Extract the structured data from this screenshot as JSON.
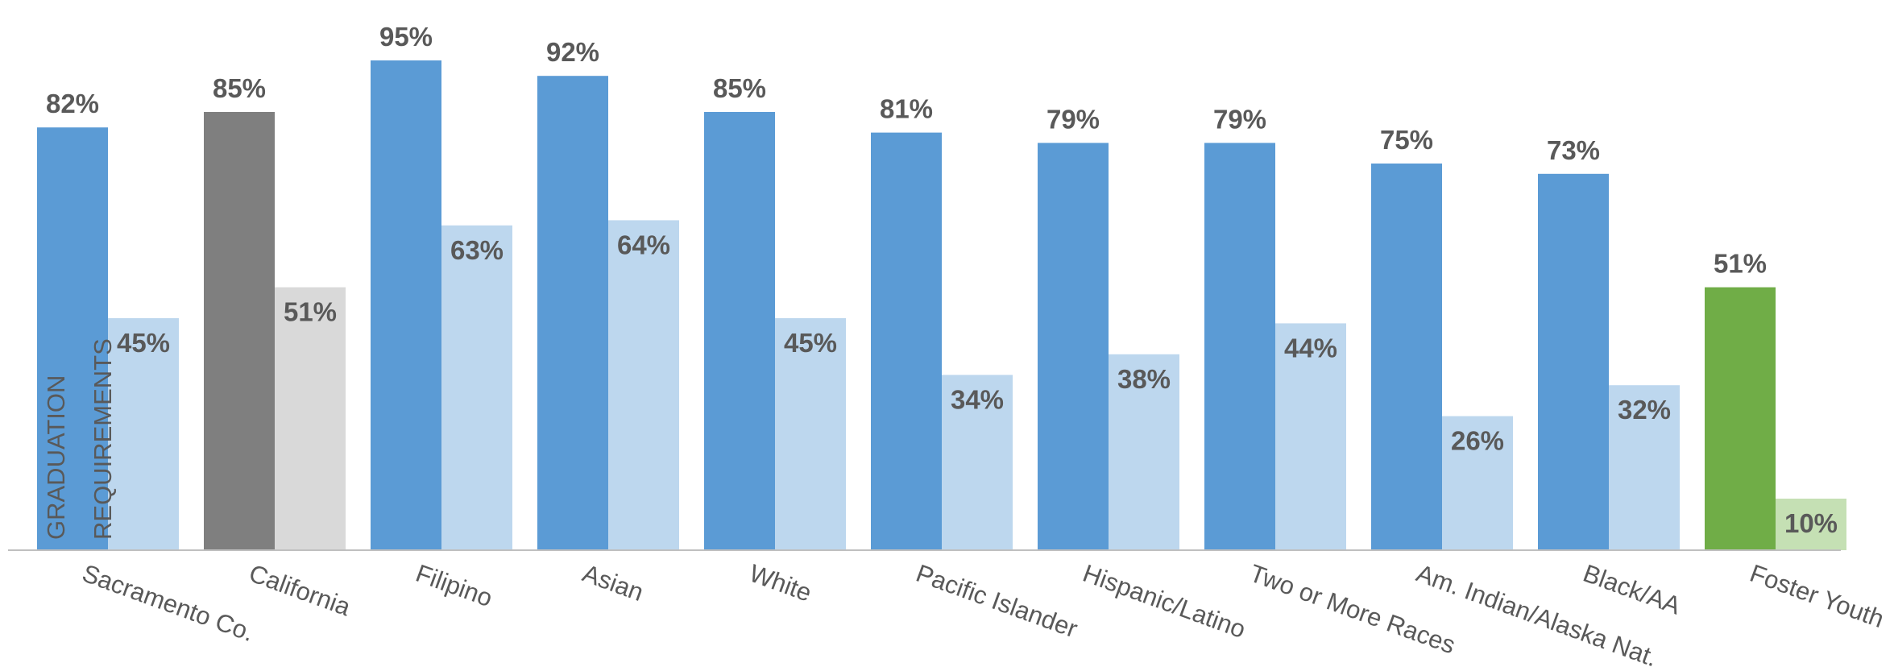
{
  "chart_data": {
    "type": "bar",
    "title": "",
    "xlabel": "",
    "ylabel": [
      "GRADUATION",
      "REQUIREMENTS"
    ],
    "ylim": [
      0,
      100
    ],
    "grid": false,
    "categories": [
      "Sacramento Co.",
      "California",
      "Filipino",
      "Asian",
      "White",
      "Pacific Islander",
      "Hispanic/Latino",
      "Two or More Races",
      "Am. Indian/Alaska Nat.",
      "Black/AA",
      "Foster Youth"
    ],
    "series": [
      {
        "values": [
          82,
          85,
          95,
          92,
          85,
          81,
          79,
          79,
          75,
          73,
          51
        ],
        "labels": [
          "82%",
          "85%",
          "95%",
          "92%",
          "85%",
          "81%",
          "79%",
          "79%",
          "75%",
          "73%",
          "51%"
        ],
        "colors": [
          "#5b9bd5",
          "#7f7f7f",
          "#5b9bd5",
          "#5b9bd5",
          "#5b9bd5",
          "#5b9bd5",
          "#5b9bd5",
          "#5b9bd5",
          "#5b9bd5",
          "#5b9bd5",
          "#70ad47"
        ]
      },
      {
        "values": [
          45,
          51,
          63,
          64,
          45,
          34,
          38,
          44,
          26,
          32,
          10
        ],
        "labels": [
          "45%",
          "51%",
          "63%",
          "64%",
          "45%",
          "34%",
          "38%",
          "44%",
          "26%",
          "32%",
          "10%"
        ],
        "colors": [
          "#bdd7ee",
          "#d9d9d9",
          "#bdd7ee",
          "#bdd7ee",
          "#bdd7ee",
          "#bdd7ee",
          "#bdd7ee",
          "#bdd7ee",
          "#bdd7ee",
          "#bdd7ee",
          "#c5e0b4"
        ]
      }
    ]
  }
}
